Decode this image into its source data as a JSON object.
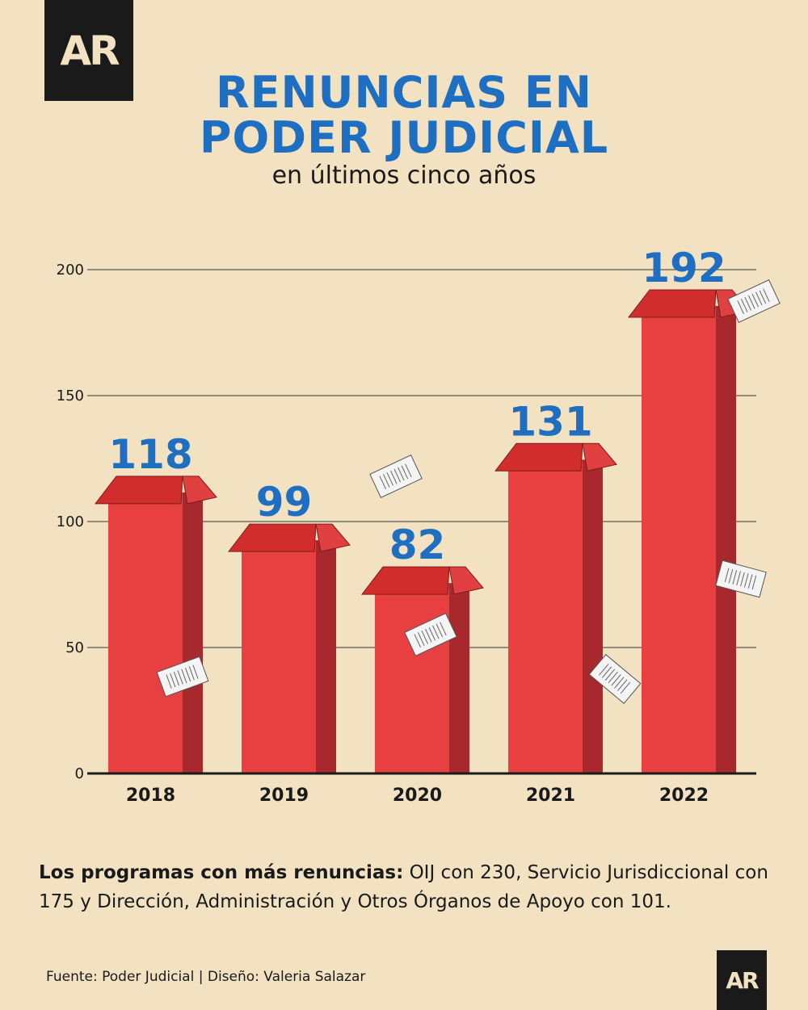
{
  "logo": {
    "text": "AR"
  },
  "title": {
    "line1": "RENUNCIAS EN",
    "line2": "PODER JUDICIAL"
  },
  "subtitle": "en últimos cinco años",
  "chart_data": {
    "type": "bar",
    "categories": [
      "2018",
      "2019",
      "2020",
      "2021",
      "2022"
    ],
    "values": [
      118,
      99,
      82,
      131,
      192
    ],
    "yticks": [
      0,
      50,
      100,
      150,
      200
    ],
    "ylim": [
      0,
      200
    ],
    "grid": true,
    "colors": {
      "bar_front": "#e84040",
      "bar_side": "#a8292d",
      "bar_top": "#d12d2d",
      "value_label": "#1e6fc1",
      "grid": "#333333"
    }
  },
  "note": {
    "label": "Los programas con más renuncias:",
    "text": " OIJ con 230, Servicio Jurisdiccional con 175 y Dirección, Administración y Otros Órganos de Apoyo con 101."
  },
  "source": "Fuente: Poder Judicial | Diseño: Valeria Salazar"
}
